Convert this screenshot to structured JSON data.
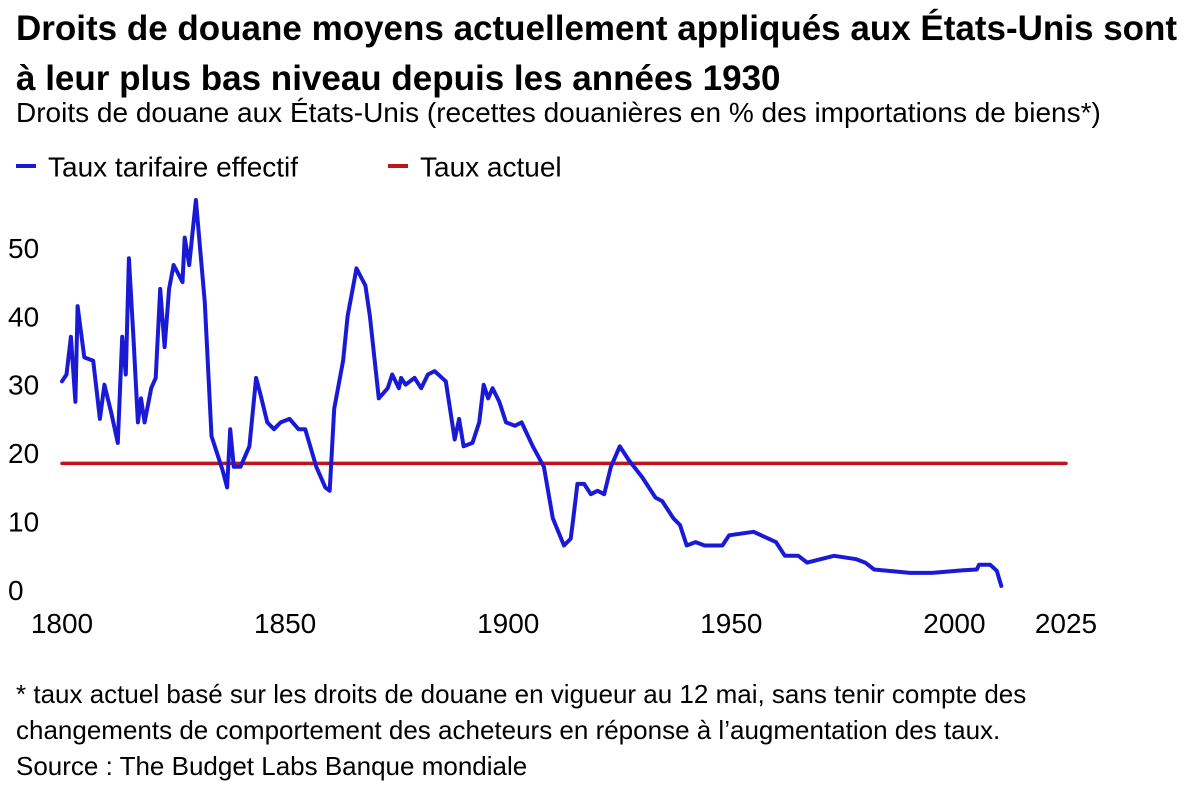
{
  "title": "Droits de douane moyens actuellement appliqués aux États-Unis sont à leur plus bas niveau depuis les années 1930",
  "subtitle": "Droits de douane aux États-Unis (recettes douanières en % des importations de biens*)",
  "footnote": "* taux actuel basé sur les droits de douane en vigueur au 12 mai, sans tenir compte des changements de comportement des acheteurs en réponse à l’augmentation des taux.",
  "source": "Source : The Budget Labs Banque mondiale",
  "colors": {
    "series_effective": "#1a1ad6",
    "series_current": "#c0141c"
  },
  "chart_data": {
    "type": "line",
    "title": "Droits de douane moyens actuellement appliqués aux États-Unis sont à leur plus bas niveau depuis les années 1930",
    "xlabel": "",
    "ylabel": "",
    "xlim": [
      1800,
      2025
    ],
    "ylim": [
      0,
      57
    ],
    "x_ticks": [
      {
        "value": 1800,
        "label": "1800"
      },
      {
        "value": 1850,
        "label": "1850"
      },
      {
        "value": 1900,
        "label": "1900"
      },
      {
        "value": 1950,
        "label": "1950"
      },
      {
        "value": 2000,
        "label": "2000"
      },
      {
        "value": 2025,
        "label": "2025"
      }
    ],
    "y_ticks": [
      0,
      10,
      20,
      30,
      40,
      50
    ],
    "grid": false,
    "legend_position": "top-left",
    "series": [
      {
        "name": "Taux tarifaire effectif",
        "color": "#1a1ad6",
        "points": [
          [
            1800,
            30.5
          ],
          [
            1801,
            31.5
          ],
          [
            1802,
            37
          ],
          [
            1803,
            27.5
          ],
          [
            1803.5,
            41.5
          ],
          [
            1805,
            34
          ],
          [
            1807,
            33.5
          ],
          [
            1808.5,
            25
          ],
          [
            1809.5,
            30
          ],
          [
            1811,
            26
          ],
          [
            1812.5,
            21.5
          ],
          [
            1813.5,
            37
          ],
          [
            1814.3,
            31.5
          ],
          [
            1815,
            48.5
          ],
          [
            1816,
            37
          ],
          [
            1817,
            24.5
          ],
          [
            1817.7,
            28
          ],
          [
            1818.5,
            24.5
          ],
          [
            1820,
            29.5
          ],
          [
            1821,
            31
          ],
          [
            1822,
            44
          ],
          [
            1823,
            35.5
          ],
          [
            1824,
            44
          ],
          [
            1825,
            47.5
          ],
          [
            1827,
            45
          ],
          [
            1827.5,
            51.5
          ],
          [
            1828.5,
            47.5
          ],
          [
            1830,
            57
          ],
          [
            1832,
            42
          ],
          [
            1833.5,
            22.5
          ],
          [
            1836,
            17.5
          ],
          [
            1837,
            15
          ],
          [
            1837.7,
            23.5
          ],
          [
            1838.5,
            18
          ],
          [
            1840,
            18
          ],
          [
            1842,
            21
          ],
          [
            1843.5,
            31
          ],
          [
            1844.5,
            28.5
          ],
          [
            1846,
            24.5
          ],
          [
            1847.5,
            23.5
          ],
          [
            1849,
            24.5
          ],
          [
            1851,
            25
          ],
          [
            1853,
            23.5
          ],
          [
            1854.5,
            23.5
          ],
          [
            1857,
            18
          ],
          [
            1859,
            15
          ],
          [
            1860,
            14.5
          ],
          [
            1861,
            26.5
          ],
          [
            1863,
            33.5
          ],
          [
            1864,
            40
          ],
          [
            1866,
            47
          ],
          [
            1868,
            44.5
          ],
          [
            1869,
            40
          ],
          [
            1871,
            28
          ],
          [
            1873,
            29.5
          ],
          [
            1874,
            31.5
          ],
          [
            1875.5,
            29.5
          ],
          [
            1876,
            31
          ],
          [
            1877,
            30
          ],
          [
            1879,
            31
          ],
          [
            1880.5,
            29.5
          ],
          [
            1882,
            31.5
          ],
          [
            1883.5,
            32
          ],
          [
            1886,
            30.5
          ],
          [
            1888,
            22
          ],
          [
            1889,
            25
          ],
          [
            1890,
            21
          ],
          [
            1892,
            21.5
          ],
          [
            1893.5,
            24.5
          ],
          [
            1894.5,
            30
          ],
          [
            1895.5,
            28
          ],
          [
            1896.5,
            29.5
          ],
          [
            1898,
            27.5
          ],
          [
            1899.5,
            24.5
          ],
          [
            1901.5,
            24
          ],
          [
            1903,
            24.5
          ],
          [
            1905.5,
            21
          ],
          [
            1908,
            18
          ],
          [
            1910,
            10.5
          ],
          [
            1912.5,
            6.5
          ],
          [
            1914,
            7.5
          ],
          [
            1914.5,
            10
          ],
          [
            1915.5,
            15.5
          ],
          [
            1917,
            15.5
          ],
          [
            1918.5,
            14
          ],
          [
            1920,
            14.5
          ],
          [
            1921.5,
            14
          ],
          [
            1923,
            18
          ],
          [
            1925,
            21
          ],
          [
            1927,
            19
          ],
          [
            1930,
            16.5
          ],
          [
            1933,
            13.5
          ],
          [
            1934.5,
            13
          ],
          [
            1937,
            10.5
          ],
          [
            1938.5,
            9.5
          ],
          [
            1940,
            6.5
          ],
          [
            1942,
            7
          ],
          [
            1944,
            6.5
          ],
          [
            1946,
            6.5
          ],
          [
            1948,
            6.5
          ],
          [
            1949.5,
            8
          ],
          [
            1955,
            8.5
          ],
          [
            1960,
            7
          ],
          [
            1962,
            5
          ],
          [
            1965,
            5
          ],
          [
            1967,
            4
          ],
          [
            1970,
            4.5
          ],
          [
            1973,
            5
          ],
          [
            1978,
            4.5
          ],
          [
            1980,
            4
          ],
          [
            1982,
            3
          ],
          [
            1990,
            2.5
          ],
          [
            1995,
            2.5
          ],
          [
            2002,
            2.9
          ],
          [
            2005,
            3
          ],
          [
            2005.5,
            3.7
          ],
          [
            2008,
            3.7
          ],
          [
            2009.5,
            2.8
          ],
          [
            2010.5,
            0.6
          ]
        ]
      },
      {
        "name": "Taux actuel",
        "color": "#c0141c",
        "points": [
          [
            1800,
            18.5
          ],
          [
            2025,
            18.5
          ]
        ]
      }
    ]
  }
}
